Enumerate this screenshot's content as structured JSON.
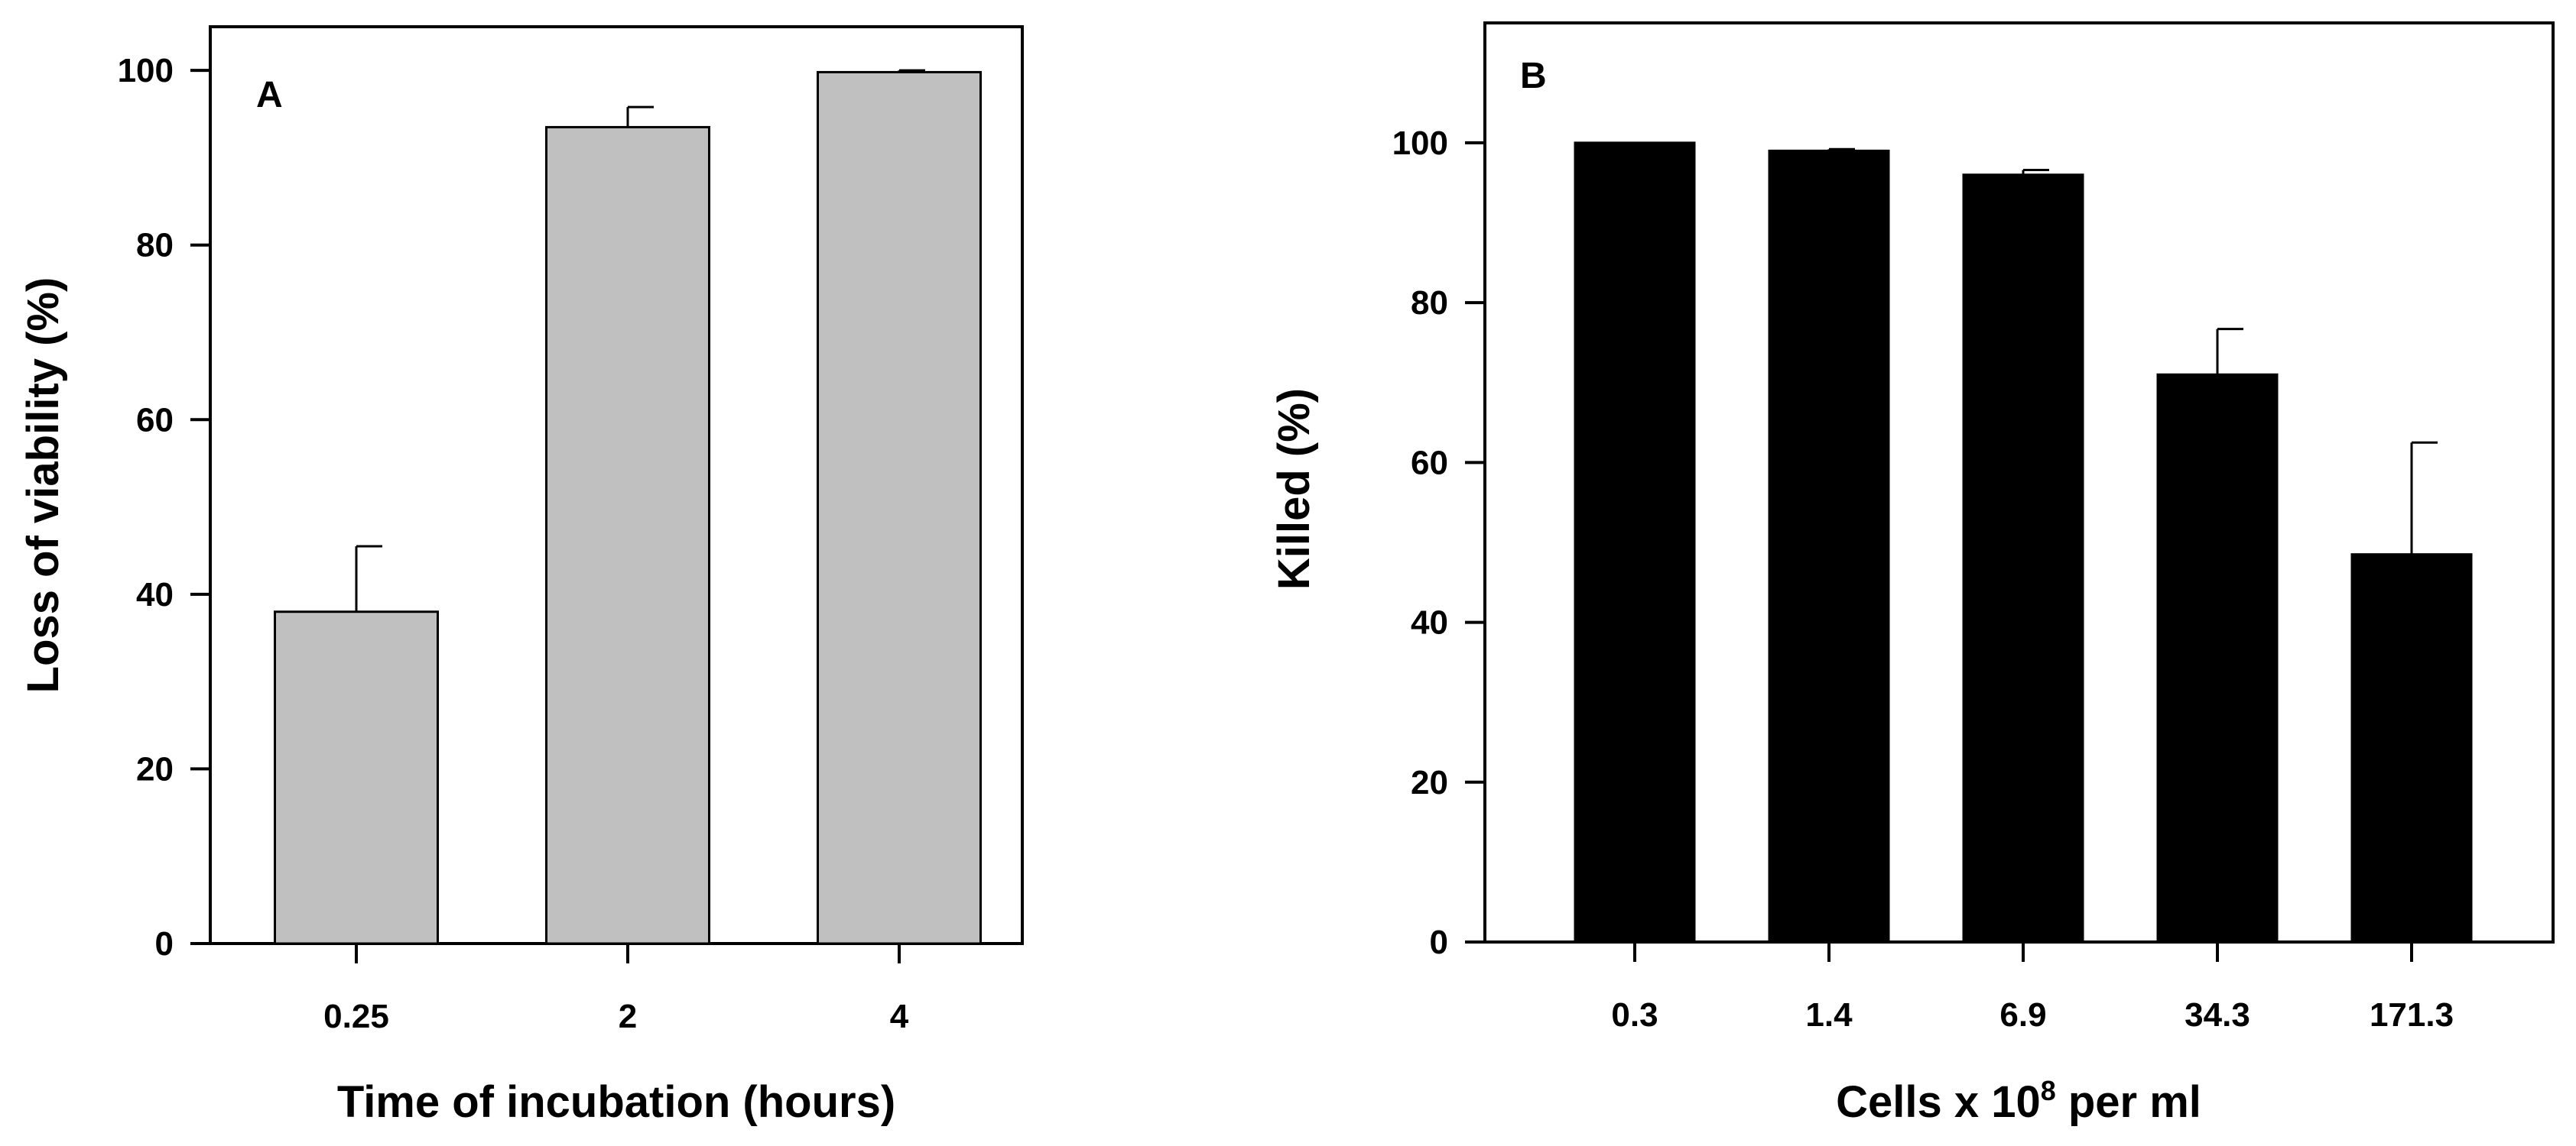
{
  "chart_data": [
    {
      "type": "bar",
      "panel_label": "A",
      "categories": [
        "0.25",
        "2",
        "4"
      ],
      "values": [
        38,
        93.5,
        99.8
      ],
      "errors": [
        7.5,
        2.3,
        0.2
      ],
      "bar_color": "#c0c0c0",
      "xlabel": "Time of incubation (hours)",
      "ylabel": "Loss of viability (%)",
      "ylim": [
        0,
        105
      ],
      "yticks": [
        "0",
        "20",
        "40",
        "60",
        "80",
        "100"
      ]
    },
    {
      "type": "bar",
      "panel_label": "B",
      "categories": [
        "0.3",
        "1.4",
        "6.9",
        "34.3",
        "171.3"
      ],
      "values": [
        100,
        99,
        96,
        71,
        48.5
      ],
      "errors": [
        0,
        0.2,
        0.6,
        5.7,
        14
      ],
      "bar_color": "#000000",
      "xlabel_parts": {
        "before": "Cells x 10",
        "superscript": "8",
        "after": " per ml"
      },
      "ylabel": "Killed (%)",
      "ylim": [
        0,
        115
      ],
      "yticks": [
        "0",
        "20",
        "40",
        "60",
        "80",
        "100"
      ]
    }
  ]
}
